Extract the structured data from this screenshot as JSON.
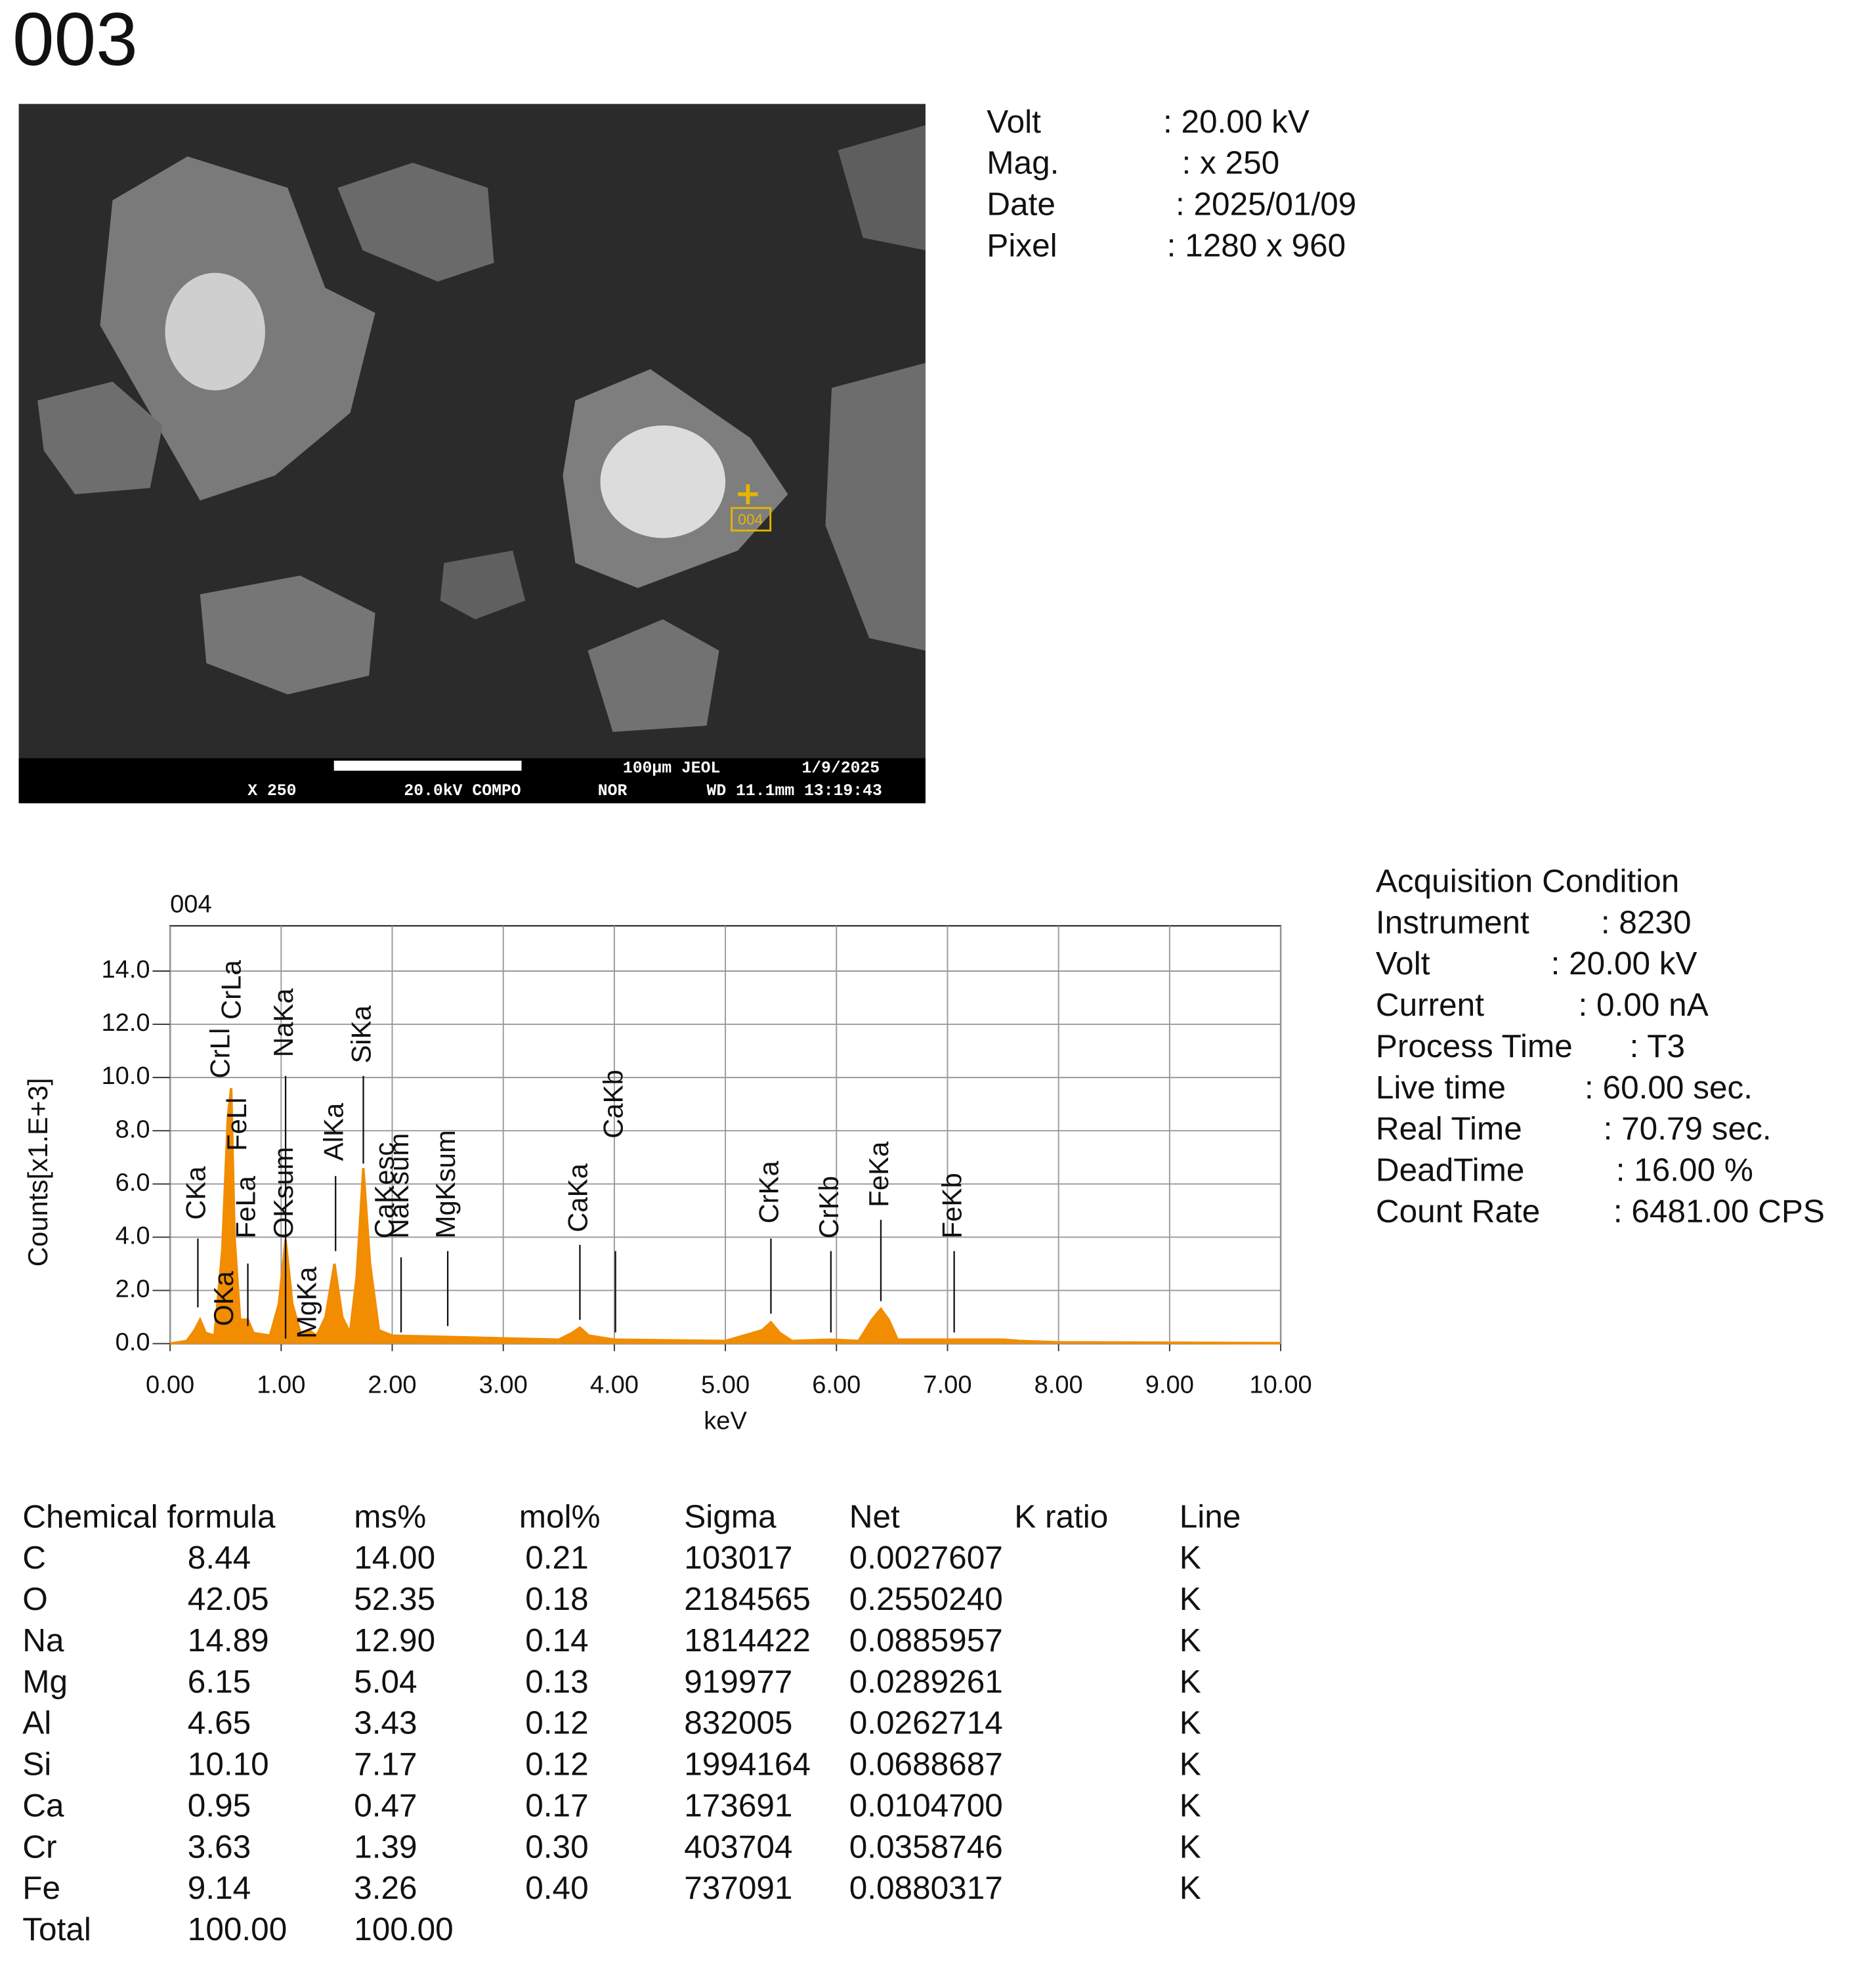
{
  "header": {
    "title": "003"
  },
  "sem_image": {
    "marker": "004",
    "info_bar": [
      "100µm JEOL",
      "1/9/2025",
      "X 250",
      "20.0kV COMPO",
      "NOR",
      "WD 11.1mm 13:19:43"
    ]
  },
  "image_info": [
    {
      "label": "Volt",
      "value": ": 20.00 kV"
    },
    {
      "label": "Mag.",
      "value": ": x 250"
    },
    {
      "label": "Date",
      "value": ": 2025/01/09"
    },
    {
      "label": "Pixel",
      "value": ": 1280 x 960"
    }
  ],
  "acquisition": {
    "title": "Acquisition Condition",
    "rows": [
      {
        "label": "Instrument",
        "value": ": 8230"
      },
      {
        "label": "Volt",
        "value": ": 20.00 kV"
      },
      {
        "label": "Current",
        "value": ": 0.00 nA"
      },
      {
        "label": "Process Time",
        "value": ": T3"
      },
      {
        "label": "Live time",
        "value": ": 60.00 sec."
      },
      {
        "label": "Real Time",
        "value": ": 70.79 sec."
      },
      {
        "label": "DeadTime",
        "value": ": 16.00 %"
      },
      {
        "label": "Count Rate",
        "value": ": 6481.00 CPS"
      }
    ]
  },
  "chart_data": {
    "type": "area",
    "title": "004",
    "x_label": "keV",
    "y_label": "Counts[x1.E+3]",
    "x": [
      0.0,
      0.15,
      0.22,
      0.27,
      0.32,
      0.4,
      0.47,
      0.52,
      0.55,
      0.58,
      0.63,
      0.7,
      0.75,
      0.9,
      0.98,
      1.04,
      1.1,
      1.18,
      1.25,
      1.32,
      1.4,
      1.48,
      1.55,
      1.62,
      1.68,
      1.74,
      1.8,
      1.88,
      2.0,
      2.5,
      3.0,
      3.5,
      3.62,
      3.69,
      3.77,
      4.0,
      5.0,
      5.33,
      5.41,
      5.49,
      5.6,
      5.95,
      6.2,
      6.32,
      6.4,
      6.47,
      6.55,
      7.06,
      7.5,
      7.65,
      8.0,
      10.0
    ],
    "values": [
      0,
      0.1,
      0.5,
      0.9,
      0.4,
      0.3,
      3.5,
      8.5,
      9.6,
      4,
      0.9,
      0.9,
      0.4,
      0.3,
      1.5,
      3.9,
      1.5,
      0.3,
      0.5,
      0.3,
      1.0,
      3.0,
      1.0,
      0.4,
      2.5,
      6.6,
      3.0,
      0.5,
      0.3,
      0.25,
      0.2,
      0.15,
      0.4,
      0.6,
      0.3,
      0.15,
      0.1,
      0.5,
      0.8,
      0.4,
      0.1,
      0.15,
      0.1,
      0.9,
      1.3,
      0.9,
      0.15,
      0.15,
      0.15,
      0.1,
      0.05,
      0.02
    ],
    "color": "#f28c00",
    "xlim": [
      0,
      10
    ],
    "ylim": [
      0,
      15.7
    ],
    "xticks": [
      {
        "value": 0,
        "label": "0.00"
      },
      {
        "value": 1,
        "label": "1.00"
      },
      {
        "value": 2,
        "label": "2.00"
      },
      {
        "value": 3,
        "label": "3.00"
      },
      {
        "value": 4,
        "label": "4.00"
      },
      {
        "value": 5,
        "label": "5.00"
      },
      {
        "value": 6,
        "label": "6.00"
      },
      {
        "value": 7,
        "label": "7.00"
      },
      {
        "value": 8,
        "label": "8.00"
      },
      {
        "value": 9,
        "label": "9.00"
      },
      {
        "value": 10,
        "label": "10.00"
      }
    ],
    "yticks": [
      {
        "value": 0,
        "label": "0.0"
      },
      {
        "value": 2,
        "label": "2.0"
      },
      {
        "value": 4,
        "label": "4.0"
      },
      {
        "value": 6,
        "label": "6.0"
      },
      {
        "value": 8,
        "label": "8.0"
      },
      {
        "value": 10,
        "label": "10.0"
      },
      {
        "value": 12,
        "label": "12.0"
      },
      {
        "value": 14,
        "label": "14.0"
      }
    ],
    "grid": true,
    "peak_labels": [
      {
        "label": "CKa",
        "x": 0.25
      },
      {
        "label": "OKa",
        "x": 0.5
      },
      {
        "label": "CrLl",
        "x": 0.47
      },
      {
        "label": "CrLa",
        "x": 0.57
      },
      {
        "label": "FeLl",
        "x": 0.62
      },
      {
        "label": "FeLa",
        "x": 0.7
      },
      {
        "label": "OKsum",
        "x": 1.04
      },
      {
        "label": "NaKa",
        "x": 1.04
      },
      {
        "label": "MgKa",
        "x": 1.25
      },
      {
        "label": "AlKa",
        "x": 1.49
      },
      {
        "label": "SiKa",
        "x": 1.74
      },
      {
        "label": "CaKesc",
        "x": 1.95
      },
      {
        "label": "NaKsum",
        "x": 2.08
      },
      {
        "label": "MgKsum",
        "x": 2.5
      },
      {
        "label": "CaKa",
        "x": 3.69
      },
      {
        "label": "CaKb",
        "x": 4.01
      },
      {
        "label": "CrKa",
        "x": 5.41
      },
      {
        "label": "CrKb",
        "x": 5.95
      },
      {
        "label": "FeKa",
        "x": 6.4
      },
      {
        "label": "FeKb",
        "x": 7.06
      }
    ]
  },
  "table": {
    "header": [
      "Chemical formula",
      "ms%",
      "mol%",
      "Sigma",
      "Net",
      "K ratio",
      "Line"
    ],
    "rows": [
      [
        "C",
        "8.44",
        "14.00",
        "0.21",
        "103017",
        "0.0027607",
        "K"
      ],
      [
        "O",
        "42.05",
        "52.35",
        "0.18",
        "2184565",
        "0.2550240",
        "K"
      ],
      [
        "Na",
        "14.89",
        "12.90",
        "0.14",
        "1814422",
        "0.0885957",
        "K"
      ],
      [
        "Mg",
        "6.15",
        "5.04",
        "0.13",
        "919977",
        "0.0289261",
        "K"
      ],
      [
        "Al",
        "4.65",
        "3.43",
        "0.12",
        "832005",
        "0.0262714",
        "K"
      ],
      [
        "Si",
        "10.10",
        "7.17",
        "0.12",
        "1994164",
        "0.0688687",
        "K"
      ],
      [
        "Ca",
        "0.95",
        "0.47",
        "0.17",
        "173691",
        "0.0104700",
        "K"
      ],
      [
        "Cr",
        "3.63",
        "1.39",
        "0.30",
        "403704",
        "0.0358746",
        "K"
      ],
      [
        "Fe",
        "9.14",
        "3.26",
        "0.40",
        "737091",
        "0.0880317",
        "K"
      ],
      [
        "Total",
        "100.00",
        "100.00"
      ]
    ]
  }
}
